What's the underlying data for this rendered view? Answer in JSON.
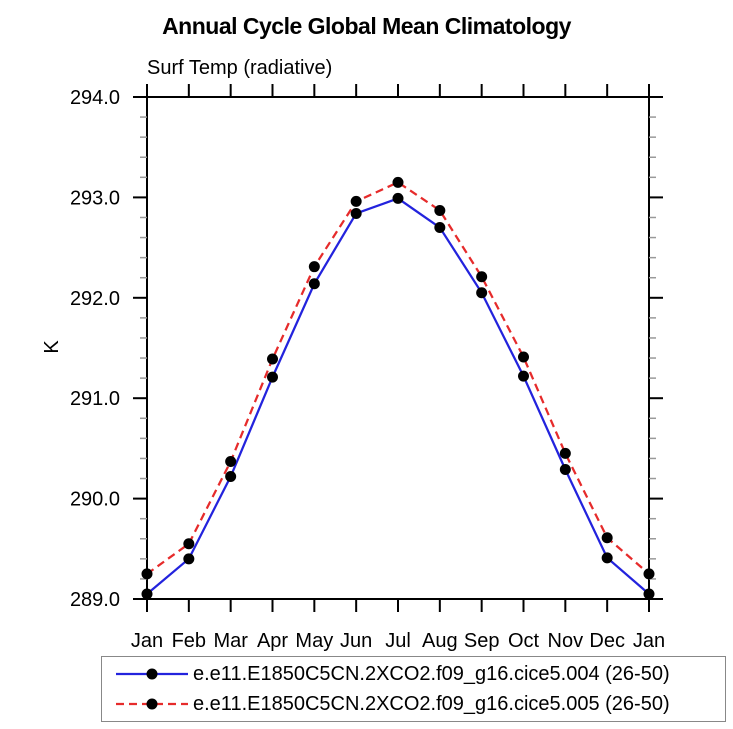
{
  "chart_data": {
    "type": "line",
    "title": "Annual Cycle Global Mean Climatology",
    "subtitle": "Surf Temp (radiative)",
    "ylabel": "K",
    "xlabel": "",
    "categories": [
      "Jan",
      "Feb",
      "Mar",
      "Apr",
      "May",
      "Jun",
      "Jul",
      "Aug",
      "Sep",
      "Oct",
      "Nov",
      "Dec",
      "Jan"
    ],
    "ylim": [
      289.0,
      294.0
    ],
    "ytick_major_step": 1.0,
    "ytick_minor_step": 0.2,
    "ytick_labels": [
      "289.0",
      "290.0",
      "291.0",
      "292.0",
      "293.0",
      "294.0"
    ],
    "grid": false,
    "legend_position": "bottom-outside",
    "axis_color": "#000000",
    "minor_tick_color": "#999999",
    "series": [
      {
        "name": "e.e11.E1850C5CN.2XCO2.f09_g16.cice5.004 (26-50)",
        "line_color": "#2323dd",
        "line_style": "solid",
        "marker": "filled-circle",
        "marker_color": "#000000",
        "values": [
          289.05,
          289.4,
          290.22,
          291.21,
          292.14,
          292.84,
          292.99,
          292.7,
          292.05,
          291.22,
          290.29,
          289.41,
          289.05
        ]
      },
      {
        "name": "e.e11.E1850C5CN.2XCO2.f09_g16.cice5.005 (26-50)",
        "line_color": "#e62b2b",
        "line_style": "dashed",
        "marker": "filled-circle",
        "marker_color": "#000000",
        "values": [
          289.25,
          289.55,
          290.37,
          291.39,
          292.31,
          292.96,
          293.15,
          292.87,
          292.21,
          291.41,
          290.45,
          289.61,
          289.25
        ]
      }
    ]
  }
}
